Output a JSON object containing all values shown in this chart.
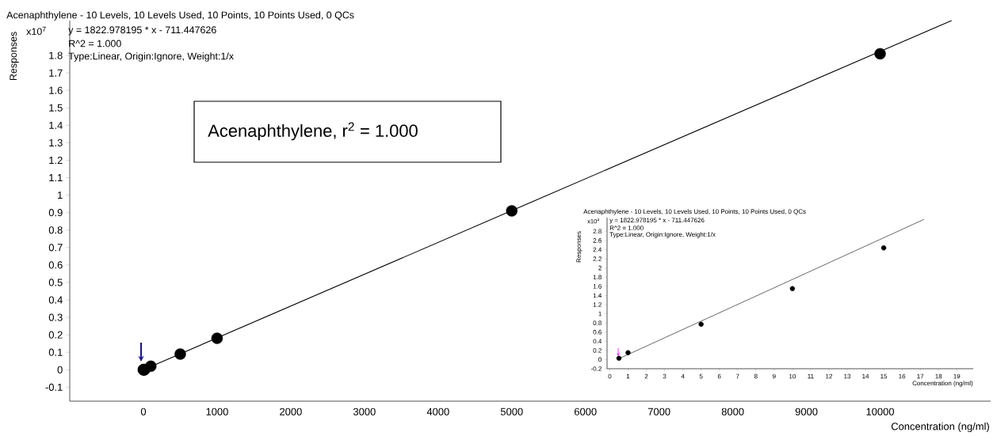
{
  "chart_data": [
    {
      "type": "scatter",
      "title": "Acenaphthylene - 10 Levels, 10 Levels Used, 10 Points, 10 Points Used, 0 QCs",
      "xlabel": "Concentration (ng/ml)",
      "ylabel": "Responses",
      "annotations": [
        "x10$^{7}$",
        "y = 1822.978195 * x  - 711.447626",
        "R^2 = 1.000",
        "Type:Linear, Origin:Ignore, Weight:1/x",
        "Acenaphthylene, r$^{2}$ = 1.000"
      ],
      "xlim": [
        -1000,
        11500
      ],
      "ylim": [
        -0.18,
        2.0
      ],
      "xticks": [
        0,
        1000,
        2000,
        3000,
        4000,
        5000,
        6000,
        7000,
        8000,
        9000,
        10000
      ],
      "yticks": [
        -0.1,
        0,
        0.1,
        0.2,
        0.3,
        0.4,
        0.5,
        0.6,
        0.7,
        0.8,
        0.9,
        1,
        1.1,
        1.2,
        1.3,
        1.4,
        1.5,
        1.6,
        1.7,
        1.8
      ],
      "series": [
        {
          "marker": "circle",
          "color": "#000000",
          "x": [
            0.5,
            1,
            5,
            10,
            15,
            100,
            500,
            1000,
            5000,
            10000
          ],
          "values": [
            0,
            0,
            0,
            0,
            0,
            0.02,
            0.09,
            0.18,
            0.91,
            1.81
          ]
        },
        {
          "type": "line",
          "color": "#000000",
          "x": [
            0.5,
            10970
          ],
          "values": [
            0,
            2.0
          ]
        }
      ]
    },
    {
      "type": "scatter",
      "title": "Acenaphthylene - 10 Levels, 10 Levels Used, 10 Points, 10 Points Used, 0 QCs",
      "xlabel": "Concentration (ng/ml)",
      "ylabel": "Responses",
      "annotations": [
        "x10$^{4}$",
        "y = 1822.978195 * x  - 711.447626",
        "R^2 = 1.000",
        "Type:Linear, Origin:Ignore, Weight:1/x"
      ],
      "xlim": [
        -0.15,
        19.9
      ],
      "ylim": [
        -0.2,
        3.1
      ],
      "xticks": [
        0,
        1,
        2,
        3,
        4,
        5,
        6,
        7,
        8,
        9,
        10,
        11,
        12,
        13,
        14,
        15,
        16,
        17,
        18,
        19
      ],
      "yticks": [
        -0.2,
        0,
        0.2,
        0.4,
        0.6,
        0.8,
        1,
        1.2,
        1.4,
        1.6,
        1.8,
        2,
        2.2,
        2.4,
        2.6,
        2.8
      ],
      "series": [
        {
          "marker": "circle",
          "color": "#000000",
          "x": [
            0.5,
            1,
            5,
            10,
            15
          ],
          "values": [
            0.03,
            0.15,
            0.77,
            1.55,
            2.44
          ]
        },
        {
          "type": "line",
          "color": "#000000",
          "x": [
            0.5,
            17.2
          ],
          "values": [
            0.02,
            3.06
          ]
        }
      ]
    }
  ]
}
